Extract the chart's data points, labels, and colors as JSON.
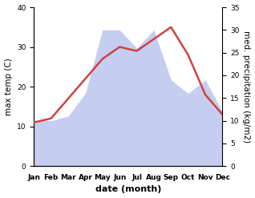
{
  "months": [
    "Jan",
    "Feb",
    "Mar",
    "Apr",
    "May",
    "Jun",
    "Jul",
    "Aug",
    "Sep",
    "Oct",
    "Nov",
    "Dec"
  ],
  "temperature": [
    11,
    12,
    17,
    22,
    27,
    30,
    29,
    32,
    35,
    28,
    18,
    13
  ],
  "precipitation": [
    10,
    10,
    11,
    16,
    30,
    30,
    26,
    30,
    19,
    16,
    19,
    12
  ],
  "temp_color": "#cc4444",
  "precip_fill_color": "#c5cdf0",
  "precip_alpha": 1.0,
  "temp_ylim": [
    0,
    40
  ],
  "precip_ylim": [
    0,
    35
  ],
  "temp_yticks": [
    0,
    10,
    20,
    30,
    40
  ],
  "precip_yticks": [
    0,
    5,
    10,
    15,
    20,
    25,
    30,
    35
  ],
  "xlabel": "date (month)",
  "ylabel_left": "max temp (C)",
  "ylabel_right": "med. precipitation (kg/m2)",
  "bg_color": "#ffffff",
  "temp_linewidth": 1.8,
  "title_fontsize": 8,
  "label_fontsize": 7.5,
  "tick_fontsize": 6.5,
  "xlabel_fontsize": 8,
  "xlabel_fontweight": "bold"
}
